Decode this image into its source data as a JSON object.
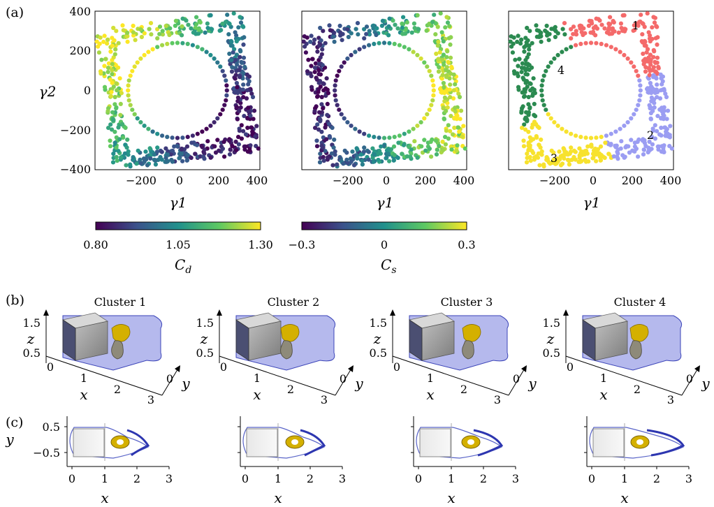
{
  "panel_labels": {
    "a": "(a)",
    "b": "(b)",
    "c": "(c)"
  },
  "colorbars": [
    {
      "ticks": [
        "0.80",
        "1.05",
        "1.30"
      ],
      "label_main": "C",
      "label_sub": "d",
      "range": [
        0.8,
        1.3
      ]
    },
    {
      "ticks": [
        "−0.3",
        "0",
        "0.3"
      ],
      "label_main": "C",
      "label_sub": "s",
      "range": [
        -0.3,
        0.3
      ]
    }
  ],
  "cluster_colors": [
    "#f46a6a",
    "#9b9df2",
    "#f7e22e",
    "#2b8a50"
  ],
  "chart_data": [
    {
      "type": "scatter",
      "title": "",
      "xlabel": "γ1",
      "ylabel": "γ2",
      "xlim": [
        -400,
        400
      ],
      "ylim": [
        -400,
        400
      ],
      "xticks": [
        "−200",
        "0",
        "200",
        "400"
      ],
      "yticks": [
        "400",
        "200",
        "0",
        "−200",
        "−400"
      ],
      "color_by": "C_d",
      "colormap": "viridis",
      "description_points": "inner circle of radius ~240, outer rotated-square band of half-width ~330-370",
      "grid": false
    },
    {
      "type": "scatter",
      "title": "",
      "xlabel": "γ1",
      "ylabel": "",
      "xlim": [
        -400,
        400
      ],
      "ylim": [
        -400,
        400
      ],
      "xticks": [
        "−200",
        "0",
        "200",
        "400"
      ],
      "color_by": "C_s",
      "colormap": "viridis",
      "grid": false
    },
    {
      "type": "scatter",
      "title": "",
      "xlabel": "γ1",
      "ylabel": "",
      "xlim": [
        -400,
        400
      ],
      "ylim": [
        -400,
        400
      ],
      "xticks": [
        "−200",
        "0",
        "200",
        "400"
      ],
      "color_by": "cluster",
      "cluster_labels": [
        "1",
        "2",
        "3",
        "4"
      ],
      "grid": false
    }
  ],
  "row_b": {
    "titles": [
      "Cluster 1",
      "Cluster 2",
      "Cluster 3",
      "Cluster 4"
    ],
    "z_ticks": [
      "1.5",
      "0.5"
    ],
    "x_ticks": [
      "0",
      "1",
      "2",
      "3"
    ],
    "y_ticks": [
      "0"
    ],
    "axis_labels": {
      "x": "x",
      "y": "y",
      "z": "z"
    }
  },
  "row_c": {
    "y_ticks": [
      "0.5",
      "−0.5"
    ],
    "x_ticks": [
      "0",
      "1",
      "2",
      "3"
    ],
    "axis_labels": {
      "x": "x",
      "y": "y"
    }
  }
}
